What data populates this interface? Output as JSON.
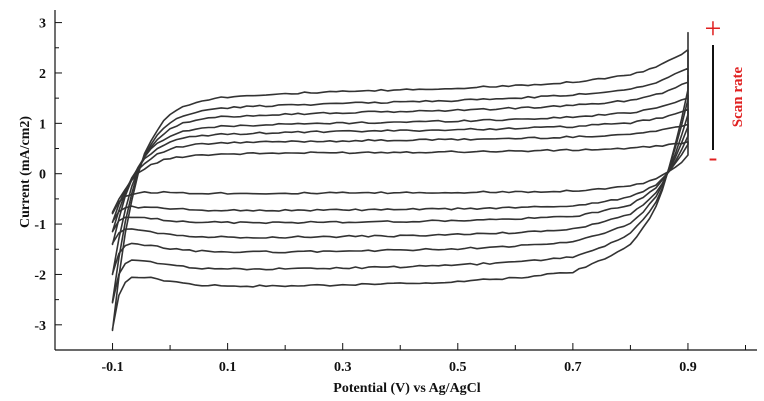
{
  "chart_data": {
    "type": "line",
    "title": "",
    "xlabel": "Potential (V) vs Ag/AgCl",
    "ylabel": "Current (mA/cm2)",
    "xlim": [
      -0.2,
      1.02
    ],
    "ylim": [
      -3.5,
      3.25
    ],
    "x_ticks": [
      -0.1,
      0.1,
      0.3,
      0.5,
      0.7,
      0.9
    ],
    "x_tick_labels": [
      "-0.1",
      "0.1",
      "0.3",
      "0.5",
      "0.7",
      "0.9"
    ],
    "x_minor_ticks": [
      0.0,
      0.2,
      0.4,
      0.6,
      0.8,
      1.0
    ],
    "y_ticks": [
      3,
      2,
      1,
      0,
      -1,
      -2,
      -3
    ],
    "y_tick_labels": [
      "3",
      "2",
      "1",
      "0",
      "-1",
      "-2",
      "-3"
    ],
    "grid": false,
    "legend": "none",
    "line_color": "#333333",
    "annotation": {
      "plus": "+",
      "minus": "-",
      "label": "Scan rate",
      "color": "#e02020"
    },
    "series_shape": {
      "x": [
        -0.1,
        -0.08,
        -0.05,
        0.0,
        0.05,
        0.1,
        0.2,
        0.3,
        0.4,
        0.5,
        0.6,
        0.7,
        0.8,
        0.85,
        0.9
      ],
      "anodic": [
        0.3,
        0.55,
        0.72,
        0.82,
        0.86,
        0.88,
        0.91,
        0.93,
        0.95,
        0.97,
        1.0,
        1.04,
        1.12,
        1.22,
        1.4
      ],
      "cathodic": [
        0.55,
        0.72,
        0.86,
        0.93,
        0.96,
        0.97,
        0.97,
        0.96,
        0.95,
        0.93,
        0.9,
        0.85,
        0.66,
        0.45,
        0.0
      ]
    },
    "series": [
      {
        "anodic_scale": 0.45,
        "cathodic_scale": 0.4,
        "start": -0.78,
        "end": 0.6
      },
      {
        "anodic_scale": 0.7,
        "cathodic_scale": 0.75,
        "start": -0.95,
        "end": 0.95
      },
      {
        "anodic_scale": 0.9,
        "cathodic_scale": 1.0,
        "start": -1.15,
        "end": 1.25
      },
      {
        "anodic_scale": 1.08,
        "cathodic_scale": 1.3,
        "start": -1.4,
        "end": 1.55
      },
      {
        "anodic_scale": 1.3,
        "cathodic_scale": 1.6,
        "start": -2.0,
        "end": 1.95
      },
      {
        "anodic_scale": 1.5,
        "cathodic_scale": 1.95,
        "start": -2.55,
        "end": 2.45
      },
      {
        "anodic_scale": 1.75,
        "cathodic_scale": 2.3,
        "start": -3.1,
        "end": 2.8
      }
    ]
  }
}
